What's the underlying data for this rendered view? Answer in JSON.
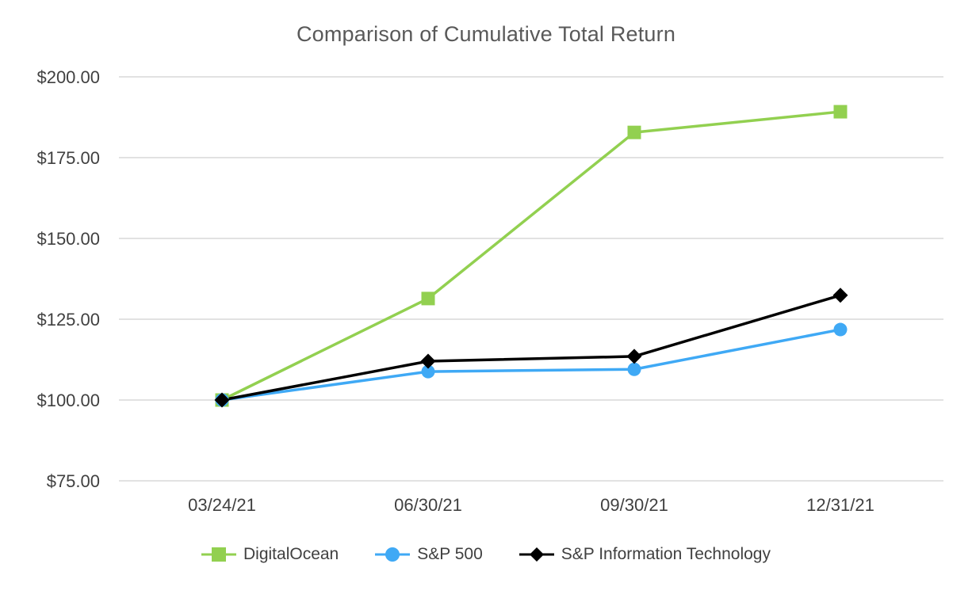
{
  "chart_data": {
    "type": "line",
    "title": "Comparison of Cumulative Total Return",
    "categories": [
      "03/24/21",
      "06/30/21",
      "09/30/21",
      "12/31/21"
    ],
    "series": [
      {
        "name": "DigitalOcean",
        "color": "#92D050",
        "marker": "square",
        "values": [
          100.0,
          131.4,
          182.8,
          189.2
        ]
      },
      {
        "name": "S&P 500",
        "color": "#3FA9F5",
        "marker": "circle",
        "values": [
          100.0,
          108.8,
          109.5,
          121.8
        ]
      },
      {
        "name": "S&P Information Technology",
        "color": "#000000",
        "marker": "diamond",
        "values": [
          100.0,
          112.0,
          113.5,
          132.4
        ]
      }
    ],
    "ylim": [
      75,
      200
    ],
    "yticks": [
      {
        "value": 75,
        "label": "$75.00"
      },
      {
        "value": 100,
        "label": "$100.00"
      },
      {
        "value": 125,
        "label": "$125.00"
      },
      {
        "value": 150,
        "label": "$150.00"
      },
      {
        "value": 175,
        "label": "$175.00"
      },
      {
        "value": 200,
        "label": "$200.00"
      }
    ],
    "grid": "horizontal",
    "gridline_color": "#D9D9D9",
    "axis_label_color": "#404040",
    "title_color": "#595959",
    "legend_position": "bottom"
  }
}
